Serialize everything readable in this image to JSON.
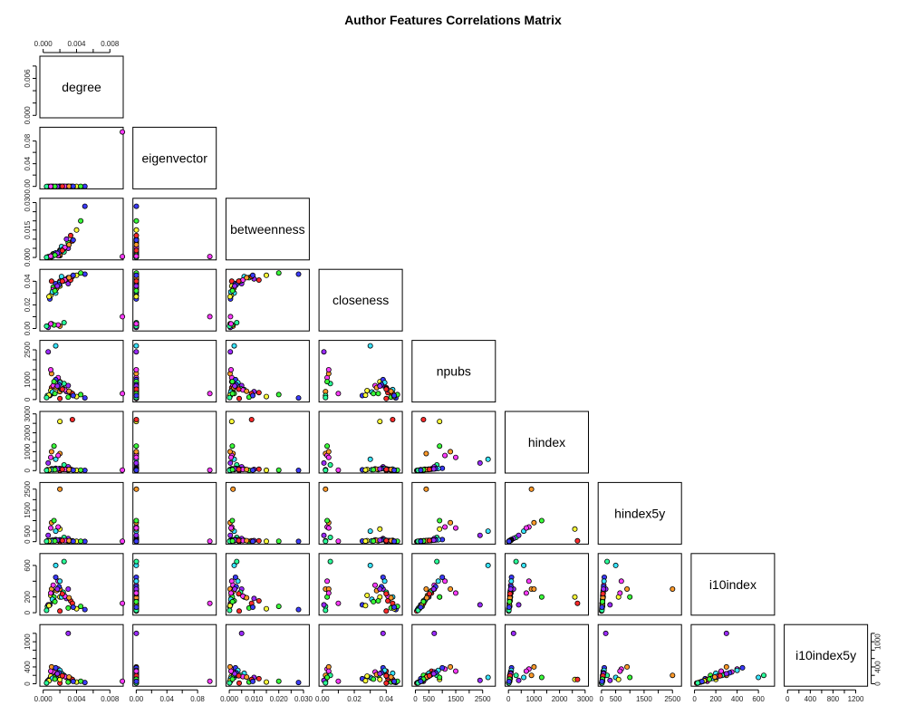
{
  "chart_data": {
    "type": "scatter",
    "title": "Author Features Correlations Matrix",
    "variables": [
      "degree",
      "eigenvector",
      "betweenness",
      "closeness",
      "npubs",
      "hindex",
      "hindex5y",
      "i10index",
      "i10index5y"
    ],
    "lims": {
      "degree": [
        0,
        0.0092
      ],
      "eigenvector": [
        0,
        0.1
      ],
      "betweenness": [
        0,
        0.031
      ],
      "closeness": [
        0,
        0.048
      ],
      "npubs": [
        0,
        2850
      ],
      "hindex": [
        0,
        3000
      ],
      "hindex5y": [
        0,
        2700
      ],
      "i10index": [
        0,
        720
      ],
      "i10index5y": [
        0,
        1350
      ]
    },
    "tick_labels": {
      "degree": [
        "0.000",
        "0.004",
        "0.008"
      ],
      "degree_left": [
        "0.000",
        "0.006"
      ],
      "eigenvector": [
        "0.00",
        "0.04",
        "0.08"
      ],
      "betweenness": [
        "0.000",
        "0.010",
        "0.020",
        "0.030"
      ],
      "betweenness_left": [
        "0.000",
        "0.015",
        "0.030"
      ],
      "closeness": [
        "0.00",
        "0.02",
        "0.04"
      ],
      "npubs": [
        "0",
        "500",
        "1500",
        "2500"
      ],
      "npubs_left": [
        "0",
        "1000",
        "2500"
      ],
      "hindex": [
        "0",
        "1000",
        "2000",
        "3000"
      ],
      "hindex5y": [
        "0",
        "500",
        "1500",
        "2500"
      ],
      "i10index": [
        "0",
        "200",
        "400",
        "600"
      ],
      "i10index_left": [
        "0",
        "200",
        "600"
      ],
      "i10index5y": [
        "0",
        "400",
        "800",
        "1200"
      ],
      "i10index5y_left": [
        "0",
        "400",
        "1000"
      ]
    },
    "ticks": {
      "degree": [
        0,
        0.002,
        0.004,
        0.006,
        0.008
      ],
      "degree_left": [
        0,
        0.002,
        0.004,
        0.006
      ],
      "eigenvector": [
        0,
        0.02,
        0.04,
        0.06,
        0.08
      ],
      "betweenness": [
        0,
        0.005,
        0.01,
        0.015,
        0.02,
        0.025,
        0.03
      ],
      "closeness": [
        0,
        0.01,
        0.02,
        0.03,
        0.04
      ],
      "npubs": [
        0,
        500,
        1000,
        1500,
        2000,
        2500
      ],
      "hindex": [
        0,
        500,
        1000,
        1500,
        2000,
        2500,
        3000
      ],
      "hindex5y": [
        0,
        500,
        1000,
        1500,
        2000,
        2500
      ],
      "i10index": [
        0,
        200,
        400,
        600
      ],
      "i10index5y": [
        0,
        200,
        400,
        600,
        800,
        1000,
        1200
      ]
    },
    "point_colors": [
      "#ff2a2a",
      "#39ff39",
      "#3b3bff",
      "#ff3bff",
      "#39e5ff",
      "#ffff39",
      "#ff9a2a",
      "#2aff9a",
      "#9a2aff"
    ],
    "authors": [
      {
        "degree": 0.002,
        "eigenvector": 0.0001,
        "betweenness": 0.004,
        "closeness": 0.04,
        "npubs": 50,
        "hindex": 10,
        "hindex5y": 5,
        "i10index": 20,
        "i10index5y": 15
      },
      {
        "degree": 0.003,
        "eigenvector": 0.0002,
        "betweenness": 0.008,
        "closeness": 0.043,
        "npubs": 120,
        "hindex": 18,
        "hindex5y": 12,
        "i10index": 60,
        "i10index5y": 40
      },
      {
        "degree": 0.005,
        "eigenvector": 0.0002,
        "betweenness": 0.028,
        "closeness": 0.046,
        "npubs": 80,
        "hindex": 15,
        "hindex5y": 10,
        "i10index": 40,
        "i10index5y": 30
      },
      {
        "degree": 0.0095,
        "eigenvector": 0.096,
        "betweenness": 0.0005,
        "closeness": 0.01,
        "npubs": 300,
        "hindex": 30,
        "hindex5y": 20,
        "i10index": 120,
        "i10index5y": 60
      },
      {
        "degree": 0.0015,
        "eigenvector": 0.0,
        "betweenness": 0.002,
        "closeness": 0.03,
        "npubs": 2700,
        "hindex": 600,
        "hindex5y": 500,
        "i10index": 600,
        "i10index5y": 150
      },
      {
        "degree": 0.002,
        "eigenvector": 0.0,
        "betweenness": 0.001,
        "closeness": 0.036,
        "npubs": 900,
        "hindex": 2600,
        "hindex5y": 600,
        "i10index": 200,
        "i10index5y": 100
      },
      {
        "degree": 0.002,
        "eigenvector": 0.0001,
        "betweenness": 0.0015,
        "closeness": 0.002,
        "npubs": 400,
        "hindex": 900,
        "hindex5y": 2500,
        "i10index": 300,
        "i10index5y": 200
      },
      {
        "degree": 0.0025,
        "eigenvector": 0.0001,
        "betweenness": 0.003,
        "closeness": 0.005,
        "npubs": 800,
        "hindex": 300,
        "hindex5y": 200,
        "i10index": 650,
        "i10index5y": 200
      },
      {
        "degree": 0.003,
        "eigenvector": 0.0001,
        "betweenness": 0.005,
        "closeness": 0.038,
        "npubs": 700,
        "hindex": 200,
        "hindex5y": 150,
        "i10index": 300,
        "i10index5y": 1200
      },
      {
        "degree": 0.001,
        "eigenvector": 0.0,
        "betweenness": 0.001,
        "closeness": 0.04,
        "npubs": 600,
        "hindex": 100,
        "hindex5y": 60,
        "i10index": 250,
        "i10index5y": 300
      },
      {
        "degree": 0.0012,
        "eigenvector": 0.0,
        "betweenness": 0.002,
        "closeness": 0.035,
        "npubs": 300,
        "hindex": 50,
        "hindex5y": 40,
        "i10index": 150,
        "i10index5y": 200
      },
      {
        "degree": 0.0008,
        "eigenvector": 0.0,
        "betweenness": 0.0005,
        "closeness": 0.025,
        "npubs": 200,
        "hindex": 40,
        "hindex5y": 30,
        "i10index": 100,
        "i10index5y": 120
      },
      {
        "degree": 0.0018,
        "eigenvector": 0.0,
        "betweenness": 0.001,
        "closeness": 0.003,
        "npubs": 1100,
        "hindex": 800,
        "hindex5y": 700,
        "i10index": 400,
        "i10index5y": 350
      },
      {
        "degree": 0.0022,
        "eigenvector": 0.0001,
        "betweenness": 0.006,
        "closeness": 0.044,
        "npubs": 500,
        "hindex": 80,
        "hindex5y": 60,
        "i10index": 200,
        "i10index5y": 250
      },
      {
        "degree": 0.004,
        "eigenvector": 0.0001,
        "betweenness": 0.015,
        "closeness": 0.045,
        "npubs": 150,
        "hindex": 20,
        "hindex5y": 15,
        "i10index": 50,
        "i10index5y": 40
      },
      {
        "degree": 0.001,
        "eigenvector": 0.0,
        "betweenness": 0.0003,
        "closeness": 0.004,
        "npubs": 1300,
        "hindex": 1000,
        "hindex5y": 900,
        "i10index": 300,
        "i10index5y": 400
      },
      {
        "degree": 0.0005,
        "eigenvector": 0.0,
        "betweenness": 0.0002,
        "closeness": 0.002,
        "npubs": 200,
        "hindex": 50,
        "hindex5y": 40,
        "i10index": 80,
        "i10index5y": 60
      },
      {
        "degree": 0.0028,
        "eigenvector": 0.0001,
        "betweenness": 0.01,
        "closeness": 0.042,
        "npubs": 400,
        "hindex": 60,
        "hindex5y": 50,
        "i10index": 180,
        "i10index5y": 150
      },
      {
        "degree": 0.0033,
        "eigenvector": 0.0001,
        "betweenness": 0.012,
        "closeness": 0.041,
        "npubs": 350,
        "hindex": 70,
        "hindex5y": 40,
        "i10index": 150,
        "i10index5y": 120
      },
      {
        "degree": 0.0045,
        "eigenvector": 0.0002,
        "betweenness": 0.02,
        "closeness": 0.047,
        "npubs": 250,
        "hindex": 30,
        "hindex5y": 20,
        "i10index": 80,
        "i10index5y": 60
      },
      {
        "degree": 0.0015,
        "eigenvector": 0.0,
        "betweenness": 0.0025,
        "closeness": 0.038,
        "npubs": 1000,
        "hindex": 120,
        "hindex5y": 100,
        "i10index": 450,
        "i10index5y": 380
      },
      {
        "degree": 0.0012,
        "eigenvector": 0.0,
        "betweenness": 0.0015,
        "closeness": 0.033,
        "npubs": 700,
        "hindex": 90,
        "hindex5y": 80,
        "i10index": 350,
        "i10index5y": 280
      },
      {
        "degree": 0.002,
        "eigenvector": 0.0,
        "betweenness": 0.0035,
        "closeness": 0.039,
        "npubs": 850,
        "hindex": 110,
        "hindex5y": 90,
        "i10index": 400,
        "i10index5y": 320
      },
      {
        "degree": 0.0009,
        "eigenvector": 0.0,
        "betweenness": 0.0008,
        "closeness": 0.028,
        "npubs": 450,
        "hindex": 60,
        "hindex5y": 45,
        "i10index": 220,
        "i10index5y": 180
      },
      {
        "degree": 0.0016,
        "eigenvector": 0.0,
        "betweenness": 0.0018,
        "closeness": 0.034,
        "npubs": 600,
        "hindex": 75,
        "hindex5y": 60,
        "i10index": 280,
        "i10index5y": 220
      },
      {
        "degree": 0.0024,
        "eigenvector": 0.0001,
        "betweenness": 0.0045,
        "closeness": 0.04,
        "npubs": 550,
        "hindex": 65,
        "hindex5y": 55,
        "i10index": 260,
        "i10index5y": 200
      },
      {
        "degree": 0.0006,
        "eigenvector": 0.0,
        "betweenness": 0.0004,
        "closeness": 0.001,
        "npubs": 2400,
        "hindex": 400,
        "hindex5y": 300,
        "i10index": 100,
        "i10index5y": 80
      },
      {
        "degree": 0.0035,
        "eigenvector": 0.0001,
        "betweenness": 0.009,
        "closeness": 0.044,
        "npubs": 300,
        "hindex": 2700,
        "hindex5y": 40,
        "i10index": 120,
        "i10index5y": 100
      },
      {
        "degree": 0.0013,
        "eigenvector": 0.0,
        "betweenness": 0.0012,
        "closeness": 0.003,
        "npubs": 900,
        "hindex": 1300,
        "hindex5y": 1000,
        "i10index": 200,
        "i10index5y": 150
      },
      {
        "degree": 0.0019,
        "eigenvector": 0.0,
        "betweenness": 0.0028,
        "closeness": 0.037,
        "npubs": 750,
        "hindex": 95,
        "hindex5y": 75,
        "i10index": 330,
        "i10index5y": 260
      },
      {
        "degree": 0.0026,
        "eigenvector": 0.0001,
        "betweenness": 0.0055,
        "closeness": 0.041,
        "npubs": 480,
        "hindex": 55,
        "hindex5y": 45,
        "i10index": 210,
        "i10index5y": 170
      },
      {
        "degree": 0.0011,
        "eigenvector": 0.0,
        "betweenness": 0.0006,
        "closeness": 0.031,
        "npubs": 380,
        "hindex": 48,
        "hindex5y": 36,
        "i10index": 170,
        "i10index5y": 130
      },
      {
        "degree": 0.0007,
        "eigenvector": 0.0,
        "betweenness": 0.0003,
        "closeness": 0.027,
        "npubs": 220,
        "hindex": 35,
        "hindex5y": 25,
        "i10index": 90,
        "i10index5y": 70
      },
      {
        "degree": 0.0031,
        "eigenvector": 0.0001,
        "betweenness": 0.007,
        "closeness": 0.043,
        "npubs": 420,
        "hindex": 58,
        "hindex5y": 48,
        "i10index": 190,
        "i10index5y": 160
      },
      {
        "degree": 0.0004,
        "eigenvector": 0.0,
        "betweenness": 0.0001,
        "closeness": 0.002,
        "npubs": 100,
        "hindex": 20,
        "hindex5y": 15,
        "i10index": 30,
        "i10index5y": 20
      },
      {
        "degree": 0.0017,
        "eigenvector": 0.0,
        "betweenness": 0.0022,
        "closeness": 0.036,
        "npubs": 680,
        "hindex": 85,
        "hindex5y": 70,
        "i10index": 300,
        "i10index5y": 240
      },
      {
        "degree": 0.0023,
        "eigenvector": 0.0001,
        "betweenness": 0.0038,
        "closeness": 0.04,
        "npubs": 520,
        "hindex": 62,
        "hindex5y": 52,
        "i10index": 240,
        "i10index5y": 190
      },
      {
        "degree": 0.0014,
        "eigenvector": 0.0,
        "betweenness": 0.0013,
        "closeness": 0.032,
        "npubs": 300,
        "hindex": 45,
        "hindex5y": 35,
        "i10index": 140,
        "i10index5y": 110
      },
      {
        "degree": 0.0036,
        "eigenvector": 0.0001,
        "betweenness": 0.0095,
        "closeness": 0.045,
        "npubs": 200,
        "hindex": 25,
        "hindex5y": 18,
        "i10index": 70,
        "i10index5y": 55
      },
      {
        "degree": 0.0009,
        "eigenvector": 0.0,
        "betweenness": 0.0007,
        "closeness": 0.004,
        "npubs": 1500,
        "hindex": 700,
        "hindex5y": 650,
        "i10index": 250,
        "i10index5y": 300
      }
    ]
  }
}
